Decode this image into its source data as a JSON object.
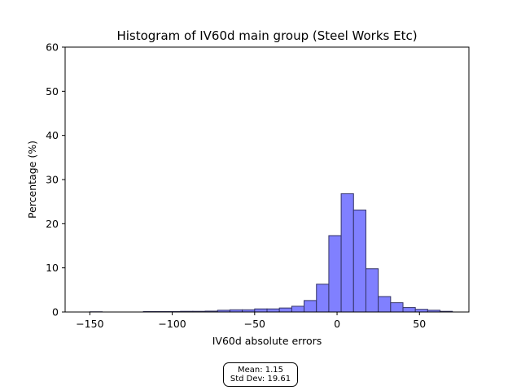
{
  "chart_data": {
    "type": "bar",
    "title": "Histogram of IV60d main group (Steel Works Etc)",
    "xlabel": "IV60d absolute errors",
    "ylabel": "Percentage (%)",
    "xlim": [
      -165,
      80
    ],
    "ylim": [
      0,
      60
    ],
    "xticks": [
      -150,
      -100,
      -50,
      0,
      50
    ],
    "xtick_labels": [
      "−150",
      "−100",
      "−50",
      "0",
      "50"
    ],
    "yticks": [
      0,
      10,
      20,
      30,
      40,
      50,
      60
    ],
    "ytick_labels": [
      "0",
      "10",
      "20",
      "30",
      "40",
      "50",
      "60"
    ],
    "grid": false,
    "bar_color": "#8080ff",
    "edge_color": "#333366",
    "bins": [
      {
        "x0": -150,
        "x1": -142.5,
        "value": 0.05
      },
      {
        "x0": -117.5,
        "x1": -110,
        "value": 0.1
      },
      {
        "x0": -110,
        "x1": -102.5,
        "value": 0.1
      },
      {
        "x0": -102.5,
        "x1": -95,
        "value": 0.1
      },
      {
        "x0": -95,
        "x1": -87.5,
        "value": 0.15
      },
      {
        "x0": -87.5,
        "x1": -80,
        "value": 0.15
      },
      {
        "x0": -80,
        "x1": -72.5,
        "value": 0.2
      },
      {
        "x0": -72.5,
        "x1": -65,
        "value": 0.4
      },
      {
        "x0": -65,
        "x1": -57.5,
        "value": 0.5
      },
      {
        "x0": -57.5,
        "x1": -50,
        "value": 0.5
      },
      {
        "x0": -50,
        "x1": -42.5,
        "value": 0.7
      },
      {
        "x0": -42.5,
        "x1": -35,
        "value": 0.7
      },
      {
        "x0": -35,
        "x1": -27.5,
        "value": 0.9
      },
      {
        "x0": -27.5,
        "x1": -20,
        "value": 1.3
      },
      {
        "x0": -20,
        "x1": -12.5,
        "value": 2.6
      },
      {
        "x0": -12.5,
        "x1": -5,
        "value": 6.3
      },
      {
        "x0": -5,
        "x1": 2.5,
        "value": 17.3
      },
      {
        "x0": 2.5,
        "x1": 10,
        "value": 26.8
      },
      {
        "x0": 10,
        "x1": 17.5,
        "value": 23.1
      },
      {
        "x0": 17.5,
        "x1": 25,
        "value": 9.8
      },
      {
        "x0": 25,
        "x1": 32.5,
        "value": 3.5
      },
      {
        "x0": 32.5,
        "x1": 40,
        "value": 2.1
      },
      {
        "x0": 40,
        "x1": 47.5,
        "value": 1.0
      },
      {
        "x0": 47.5,
        "x1": 55,
        "value": 0.6
      },
      {
        "x0": 55,
        "x1": 62.5,
        "value": 0.4
      },
      {
        "x0": 62.5,
        "x1": 70,
        "value": 0.15
      }
    ]
  },
  "stats": {
    "mean": "Mean: 1.15",
    "std": "Std Dev: 19.61"
  }
}
